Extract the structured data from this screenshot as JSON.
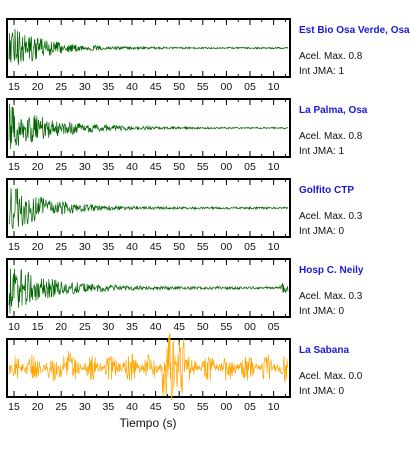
{
  "chart_data": [
    {
      "type": "line",
      "station": "Est Bio Osa Verde, Osa",
      "accel_label": "Acel. Max. 0.8",
      "intensity_label": "Int JMA: 1",
      "color": "#006400",
      "x_ticks": [
        "15",
        "20",
        "25",
        "30",
        "35",
        "40",
        "45",
        "50",
        "55",
        "00",
        "05",
        "10"
      ],
      "envelope": {
        "onset": 0.0,
        "peak": 1.0,
        "decay": 0.055,
        "floor": 0.03
      }
    },
    {
      "type": "line",
      "station": "La Palma, Osa",
      "accel_label": "Acel. Max. 0.8",
      "intensity_label": "Int JMA: 1",
      "color": "#006400",
      "x_ticks": [
        "15",
        "20",
        "25",
        "30",
        "35",
        "40",
        "45",
        "50",
        "55",
        "00",
        "05",
        "10"
      ],
      "envelope": {
        "onset": 0.0,
        "peak": 0.95,
        "decay": 0.04,
        "floor": 0.025
      }
    },
    {
      "type": "line",
      "station": "Golfito CTP",
      "accel_label": "Acel. Max. 0.3",
      "intensity_label": "Int JMA: 0",
      "color": "#006400",
      "x_ticks": [
        "15",
        "20",
        "25",
        "30",
        "35",
        "40",
        "45",
        "50",
        "55",
        "00",
        "05",
        "10"
      ],
      "envelope": {
        "onset": 0.0,
        "peak": 1.0,
        "decay": 0.05,
        "floor": 0.04
      }
    },
    {
      "type": "line",
      "station": "Hosp C. Neily",
      "accel_label": "Acel. Max. 0.3",
      "intensity_label": "Int JMA: 0",
      "color": "#006400",
      "x_ticks": [
        "10",
        "15",
        "20",
        "25",
        "30",
        "35",
        "40",
        "45",
        "50",
        "55",
        "00",
        "05"
      ],
      "envelope": {
        "onset": 0.0,
        "peak": 1.0,
        "decay": 0.045,
        "floor": 0.05
      }
    },
    {
      "type": "line",
      "station": "La Sabana",
      "accel_label": "Acel. Max. 0.0",
      "intensity_label": "Int JMA: 0",
      "color": "#ffa500",
      "x_ticks": [
        "15",
        "20",
        "25",
        "30",
        "35",
        "40",
        "45",
        "50",
        "55",
        "00",
        "05",
        "10"
      ],
      "envelope": {
        "onset": 0.0,
        "peak": 0.3,
        "decay": 0.0,
        "floor": 0.3
      }
    }
  ],
  "xlabel": "Tiempo (s)"
}
